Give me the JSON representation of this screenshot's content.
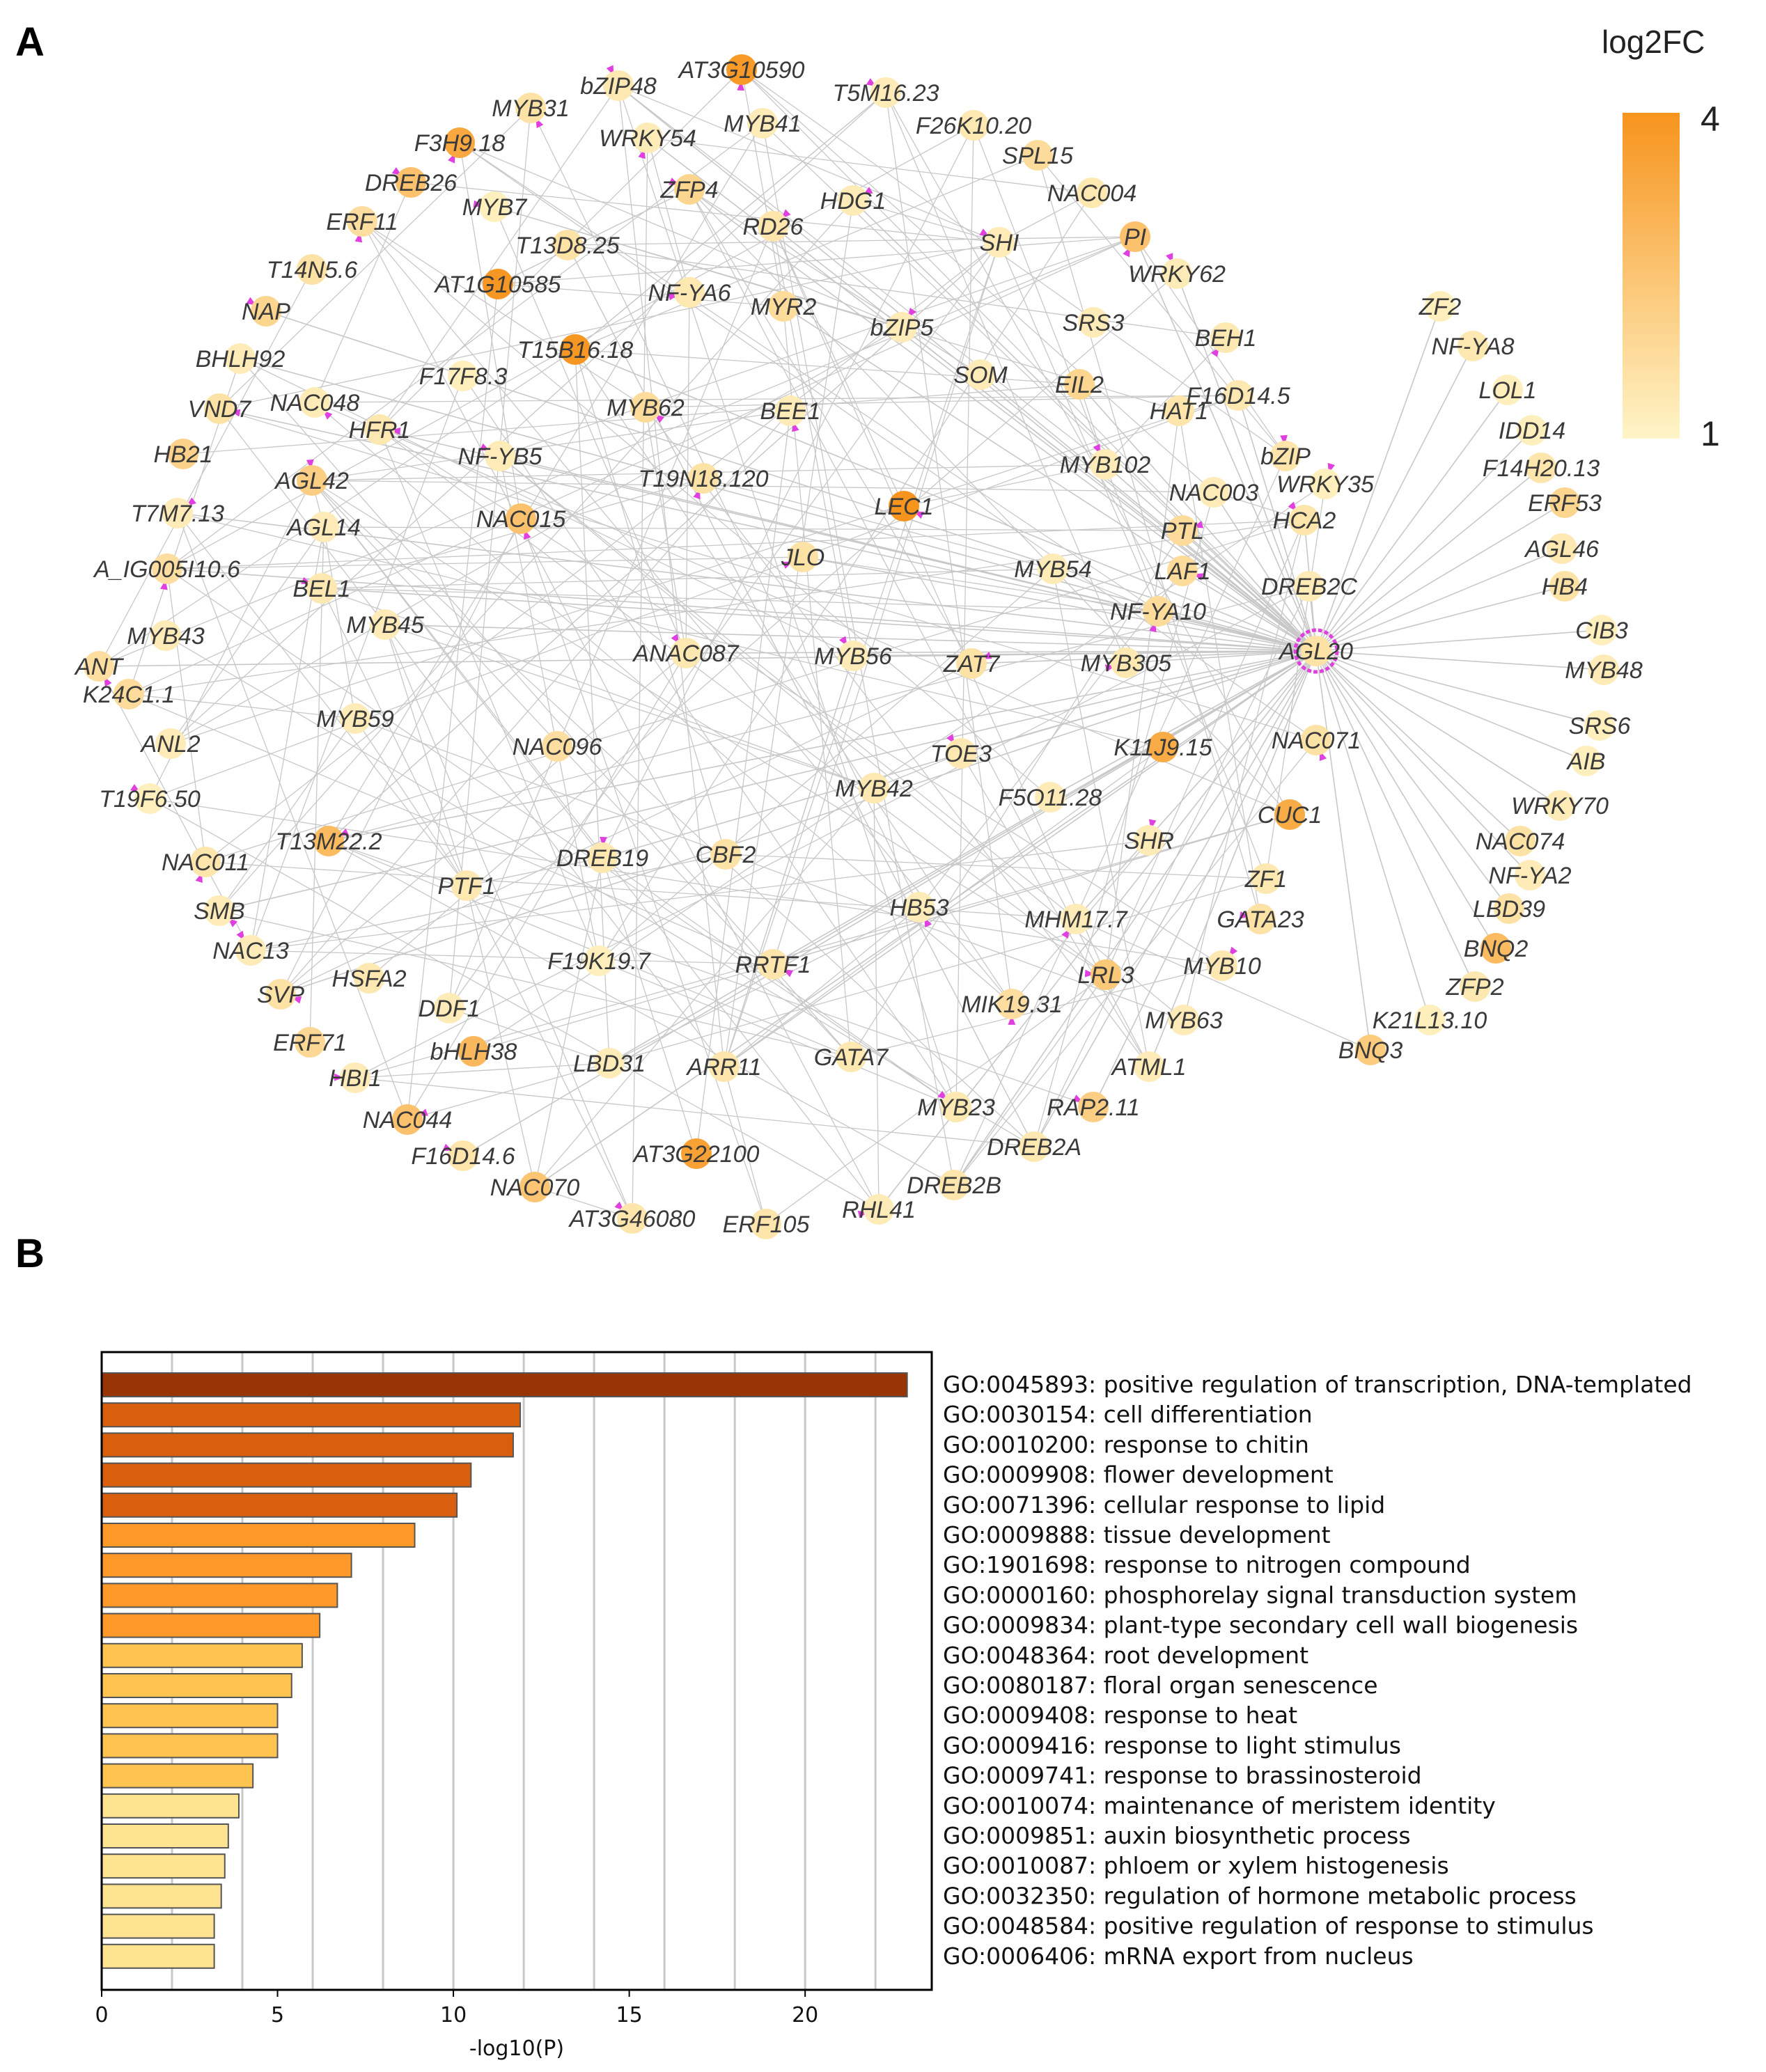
{
  "panels": {
    "a": "A",
    "b": "B"
  },
  "legend": {
    "title": "log2FC",
    "max_label": "4",
    "min_label": "1",
    "color_low": "#fff5c8",
    "color_high": "#f7941d"
  },
  "colors": {
    "edge": "#c8c8c8",
    "arrow": "#e040e0",
    "bar_edge": "#555555",
    "grid": "#c8c8c8"
  },
  "chart_data": [
    {
      "type": "network",
      "title": "",
      "hub": "AGL20",
      "nodes": [
        {
          "name": "AT3G10590",
          "log2fc": 3.8
        },
        {
          "name": "bZIP48",
          "log2fc": 1.4
        },
        {
          "name": "MYB31",
          "log2fc": 1.6
        },
        {
          "name": "T5M16.23",
          "log2fc": 1.3
        },
        {
          "name": "MYB41",
          "log2fc": 1.3
        },
        {
          "name": "F3H9.18",
          "log2fc": 3.4
        },
        {
          "name": "WRKY54",
          "log2fc": 1.3
        },
        {
          "name": "F26K10.20",
          "log2fc": 1.4
        },
        {
          "name": "SPL15",
          "log2fc": 1.8
        },
        {
          "name": "DREB26",
          "log2fc": 2.6
        },
        {
          "name": "NAC004",
          "log2fc": 1.4
        },
        {
          "name": "ZFP4",
          "log2fc": 2.0
        },
        {
          "name": "MYB7",
          "log2fc": 1.2
        },
        {
          "name": "HDG1",
          "log2fc": 1.3
        },
        {
          "name": "ERF11",
          "log2fc": 1.7
        },
        {
          "name": "RD26",
          "log2fc": 1.5
        },
        {
          "name": "PI",
          "log2fc": 2.6
        },
        {
          "name": "T13D8.25",
          "log2fc": 1.6
        },
        {
          "name": "SHI",
          "log2fc": 1.3
        },
        {
          "name": "T14N5.6",
          "log2fc": 1.6
        },
        {
          "name": "WRKY62",
          "log2fc": 1.3
        },
        {
          "name": "AT1G10585",
          "log2fc": 3.9
        },
        {
          "name": "NF-YA6",
          "log2fc": 1.4
        },
        {
          "name": "MYR2",
          "log2fc": 1.8
        },
        {
          "name": "NAP",
          "log2fc": 2.0
        },
        {
          "name": "bZIP5",
          "log2fc": 1.3
        },
        {
          "name": "SRS3",
          "log2fc": 1.3
        },
        {
          "name": "ZF2",
          "log2fc": 1.2
        },
        {
          "name": "BEH1",
          "log2fc": 1.4
        },
        {
          "name": "BHLH92",
          "log2fc": 1.3
        },
        {
          "name": "NF-YA8",
          "log2fc": 1.4
        },
        {
          "name": "T15B16.18",
          "log2fc": 3.9
        },
        {
          "name": "F17F8.3",
          "log2fc": 1.2
        },
        {
          "name": "SOM",
          "log2fc": 1.3
        },
        {
          "name": "EIL2",
          "log2fc": 2.0
        },
        {
          "name": "LOL1",
          "log2fc": 1.2
        },
        {
          "name": "F16D14.5",
          "log2fc": 1.4
        },
        {
          "name": "VND7",
          "log2fc": 1.6
        },
        {
          "name": "NAC048",
          "log2fc": 1.3
        },
        {
          "name": "MYB62",
          "log2fc": 1.8
        },
        {
          "name": "BEE1",
          "log2fc": 1.3
        },
        {
          "name": "HAT1",
          "log2fc": 1.5
        },
        {
          "name": "HFR1",
          "log2fc": 1.4
        },
        {
          "name": "IDD14",
          "log2fc": 1.2
        },
        {
          "name": "NF-YB5",
          "log2fc": 1.3
        },
        {
          "name": "bZIP",
          "log2fc": 1.5
        },
        {
          "name": "HB21",
          "log2fc": 2.1
        },
        {
          "name": "MYB102",
          "log2fc": 1.3
        },
        {
          "name": "F14H20.13",
          "log2fc": 1.5
        },
        {
          "name": "AGL42",
          "log2fc": 2.2
        },
        {
          "name": "T19N18.120",
          "log2fc": 1.6
        },
        {
          "name": "WRKY35",
          "log2fc": 1.2
        },
        {
          "name": "NAC003",
          "log2fc": 1.3
        },
        {
          "name": "LEC1",
          "log2fc": 4.0
        },
        {
          "name": "ERF53",
          "log2fc": 2.0
        },
        {
          "name": "T7M7.13",
          "log2fc": 1.3
        },
        {
          "name": "NAC015",
          "log2fc": 2.6
        },
        {
          "name": "HCA2",
          "log2fc": 1.5
        },
        {
          "name": "AGL14",
          "log2fc": 1.3
        },
        {
          "name": "PTL",
          "log2fc": 1.8
        },
        {
          "name": "AGL46",
          "log2fc": 1.4
        },
        {
          "name": "A_IG005I10.6",
          "log2fc": 1.7
        },
        {
          "name": "JLO",
          "log2fc": 1.6
        },
        {
          "name": "LAF1",
          "log2fc": 1.8
        },
        {
          "name": "MYB54",
          "log2fc": 1.3
        },
        {
          "name": "HB4",
          "log2fc": 1.6
        },
        {
          "name": "BEL1",
          "log2fc": 1.4
        },
        {
          "name": "DREB2C",
          "log2fc": 1.3
        },
        {
          "name": "NF-YA10",
          "log2fc": 1.8
        },
        {
          "name": "MYB45",
          "log2fc": 1.3
        },
        {
          "name": "CIB3",
          "log2fc": 1.2
        },
        {
          "name": "MYB43",
          "log2fc": 1.3
        },
        {
          "name": "ANAC087",
          "log2fc": 1.4
        },
        {
          "name": "MYB56",
          "log2fc": 1.3
        },
        {
          "name": "AGL20",
          "log2fc": 1.6
        },
        {
          "name": "ANT",
          "log2fc": 1.7
        },
        {
          "name": "MYB305",
          "log2fc": 1.4
        },
        {
          "name": "ZAT7",
          "log2fc": 1.6
        },
        {
          "name": "MYB48",
          "log2fc": 1.3
        },
        {
          "name": "K24C1.1",
          "log2fc": 1.8
        },
        {
          "name": "NAC071",
          "log2fc": 1.6
        },
        {
          "name": "SRS6",
          "log2fc": 1.2
        },
        {
          "name": "MYB59",
          "log2fc": 1.3
        },
        {
          "name": "ANL2",
          "log2fc": 1.3
        },
        {
          "name": "NAC096",
          "log2fc": 1.7
        },
        {
          "name": "K11J9.15",
          "log2fc": 3.3
        },
        {
          "name": "TOE3",
          "log2fc": 1.4
        },
        {
          "name": "AIB",
          "log2fc": 1.2
        },
        {
          "name": "MYB42",
          "log2fc": 1.4
        },
        {
          "name": "F5O11.28",
          "log2fc": 1.3
        },
        {
          "name": "T19F6.50",
          "log2fc": 1.2
        },
        {
          "name": "CUC1",
          "log2fc": 3.3
        },
        {
          "name": "WRKY70",
          "log2fc": 1.3
        },
        {
          "name": "T13M22.2",
          "log2fc": 2.8
        },
        {
          "name": "NAC011",
          "log2fc": 1.5
        },
        {
          "name": "NAC074",
          "log2fc": 1.6
        },
        {
          "name": "SHR",
          "log2fc": 1.3
        },
        {
          "name": "DREB19",
          "log2fc": 1.4
        },
        {
          "name": "CBF2",
          "log2fc": 1.6
        },
        {
          "name": "PTF1",
          "log2fc": 1.4
        },
        {
          "name": "ZF1",
          "log2fc": 1.4
        },
        {
          "name": "NF-YA2",
          "log2fc": 1.3
        },
        {
          "name": "SMB",
          "log2fc": 1.3
        },
        {
          "name": "HB53",
          "log2fc": 1.3
        },
        {
          "name": "GATA23",
          "log2fc": 1.6
        },
        {
          "name": "MHM17.7",
          "log2fc": 1.3
        },
        {
          "name": "LBD39",
          "log2fc": 1.6
        },
        {
          "name": "NAC13",
          "log2fc": 1.3
        },
        {
          "name": "F19K19.7",
          "log2fc": 1.2
        },
        {
          "name": "RRTF1",
          "log2fc": 1.5
        },
        {
          "name": "LRL3",
          "log2fc": 2.4
        },
        {
          "name": "BNQ2",
          "log2fc": 2.8
        },
        {
          "name": "HSFA2",
          "log2fc": 1.4
        },
        {
          "name": "MYB10",
          "log2fc": 1.4
        },
        {
          "name": "SVP",
          "log2fc": 1.6
        },
        {
          "name": "ZFP2",
          "log2fc": 1.4
        },
        {
          "name": "DDF1",
          "log2fc": 1.3
        },
        {
          "name": "MIK19.31",
          "log2fc": 1.7
        },
        {
          "name": "K21L13.10",
          "log2fc": 1.2
        },
        {
          "name": "MYB63",
          "log2fc": 1.3
        },
        {
          "name": "BNQ3",
          "log2fc": 2.3
        },
        {
          "name": "ERF71",
          "log2fc": 1.9
        },
        {
          "name": "bHLH38",
          "log2fc": 2.9
        },
        {
          "name": "ARR11",
          "log2fc": 1.5
        },
        {
          "name": "GATA7",
          "log2fc": 1.4
        },
        {
          "name": "ATML1",
          "log2fc": 1.3
        },
        {
          "name": "LBD31",
          "log2fc": 1.3
        },
        {
          "name": "HBI1",
          "log2fc": 1.3
        },
        {
          "name": "MYB23",
          "log2fc": 1.4
        },
        {
          "name": "RAP2.11",
          "log2fc": 2.2
        },
        {
          "name": "NAC044",
          "log2fc": 2.6
        },
        {
          "name": "F16D14.6",
          "log2fc": 1.5
        },
        {
          "name": "AT3G22100",
          "log2fc": 3.6
        },
        {
          "name": "DREB2A",
          "log2fc": 1.4
        },
        {
          "name": "NAC070",
          "log2fc": 2.5
        },
        {
          "name": "DREB2B",
          "log2fc": 1.5
        },
        {
          "name": "RHL41",
          "log2fc": 1.3
        },
        {
          "name": "AT3G46080",
          "log2fc": 1.5
        },
        {
          "name": "ERF105",
          "log2fc": 1.5
        }
      ],
      "colorbar": {
        "label": "log2FC",
        "range": [
          1,
          4
        ]
      }
    },
    {
      "type": "bar",
      "orientation": "horizontal",
      "title": "",
      "xlabel": "-log10(P)",
      "ylabel": "",
      "xlim": [
        0,
        23.6
      ],
      "xticks": [
        0,
        5,
        10,
        15,
        20
      ],
      "grid": true,
      "categories": [
        "GO:0045893: positive regulation of transcription, DNA-templated",
        "GO:0030154: cell differentiation",
        "GO:0010200: response to chitin",
        "GO:0009908: flower development",
        "GO:0071396: cellular response to lipid",
        "GO:0009888: tissue development",
        "GO:1901698: response to nitrogen compound",
        "GO:0000160: phosphorelay signal transduction system",
        "GO:0009834: plant-type secondary cell wall biogenesis",
        "GO:0048364: root development",
        "GO:0080187: floral organ senescence",
        "GO:0009408: response to heat",
        "GO:0009416: response to light stimulus",
        "GO:0009741: response to brassinosteroid",
        "GO:0010074: maintenance of meristem identity",
        "GO:0009851: auxin biosynthetic process",
        "GO:0010087: phloem or xylem histogenesis",
        "GO:0032350: regulation of hormone metabolic process",
        "GO:0048584: positive regulation of response to stimulus",
        "GO:0006406: mRNA export from nucleus"
      ],
      "values": [
        22.9,
        11.9,
        11.7,
        10.5,
        10.1,
        8.9,
        7.1,
        6.7,
        6.2,
        5.7,
        5.4,
        5.0,
        5.0,
        4.3,
        3.9,
        3.6,
        3.5,
        3.4,
        3.2,
        3.2
      ],
      "bar_colors": [
        "#993404",
        "#d95f0e",
        "#d95f0e",
        "#d95f0e",
        "#d95f0e",
        "#fe9929",
        "#fe9929",
        "#fe9929",
        "#fe9929",
        "#fec44f",
        "#fec44f",
        "#fec44f",
        "#fec44f",
        "#fec44f",
        "#fee391",
        "#fee391",
        "#fee391",
        "#fee391",
        "#fee391",
        "#fee391"
      ]
    }
  ]
}
